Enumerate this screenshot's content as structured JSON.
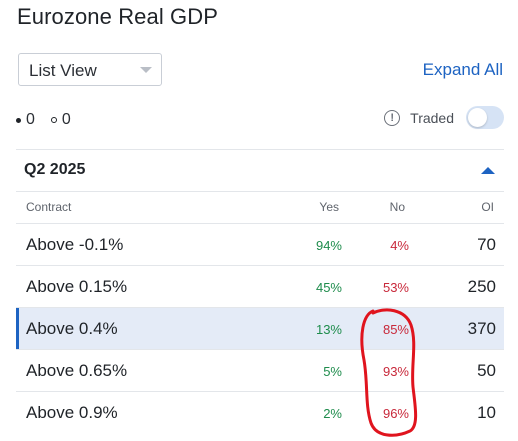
{
  "page": {
    "title": "Eurozone Real GDP"
  },
  "view_select": {
    "value": "List View"
  },
  "expand_all": {
    "label": "Expand All"
  },
  "legend": {
    "filled_count": "0",
    "empty_count": "0"
  },
  "traded_toggle": {
    "label": "Traded",
    "state": "off"
  },
  "section": {
    "title": "Q2 2025",
    "expanded": true
  },
  "table": {
    "headers": {
      "contract": "Contract",
      "yes": "Yes",
      "no": "No",
      "oi": "OI"
    },
    "rows": [
      {
        "contract": "Above -0.1%",
        "yes": "94%",
        "no": "4%",
        "oi": "70",
        "selected": false
      },
      {
        "contract": "Above 0.15%",
        "yes": "45%",
        "no": "53%",
        "oi": "250",
        "selected": false
      },
      {
        "contract": "Above 0.4%",
        "yes": "13%",
        "no": "85%",
        "oi": "370",
        "selected": true
      },
      {
        "contract": "Above 0.65%",
        "yes": "5%",
        "no": "93%",
        "oi": "50",
        "selected": false
      },
      {
        "contract": "Above 0.9%",
        "yes": "2%",
        "no": "96%",
        "oi": "10",
        "selected": false
      }
    ]
  },
  "colors": {
    "accent": "#1d63c2",
    "yes": "#1e8c4c",
    "no": "#c8283a",
    "annotation": "#e0141e",
    "selected_row": "#e4ebf7"
  }
}
